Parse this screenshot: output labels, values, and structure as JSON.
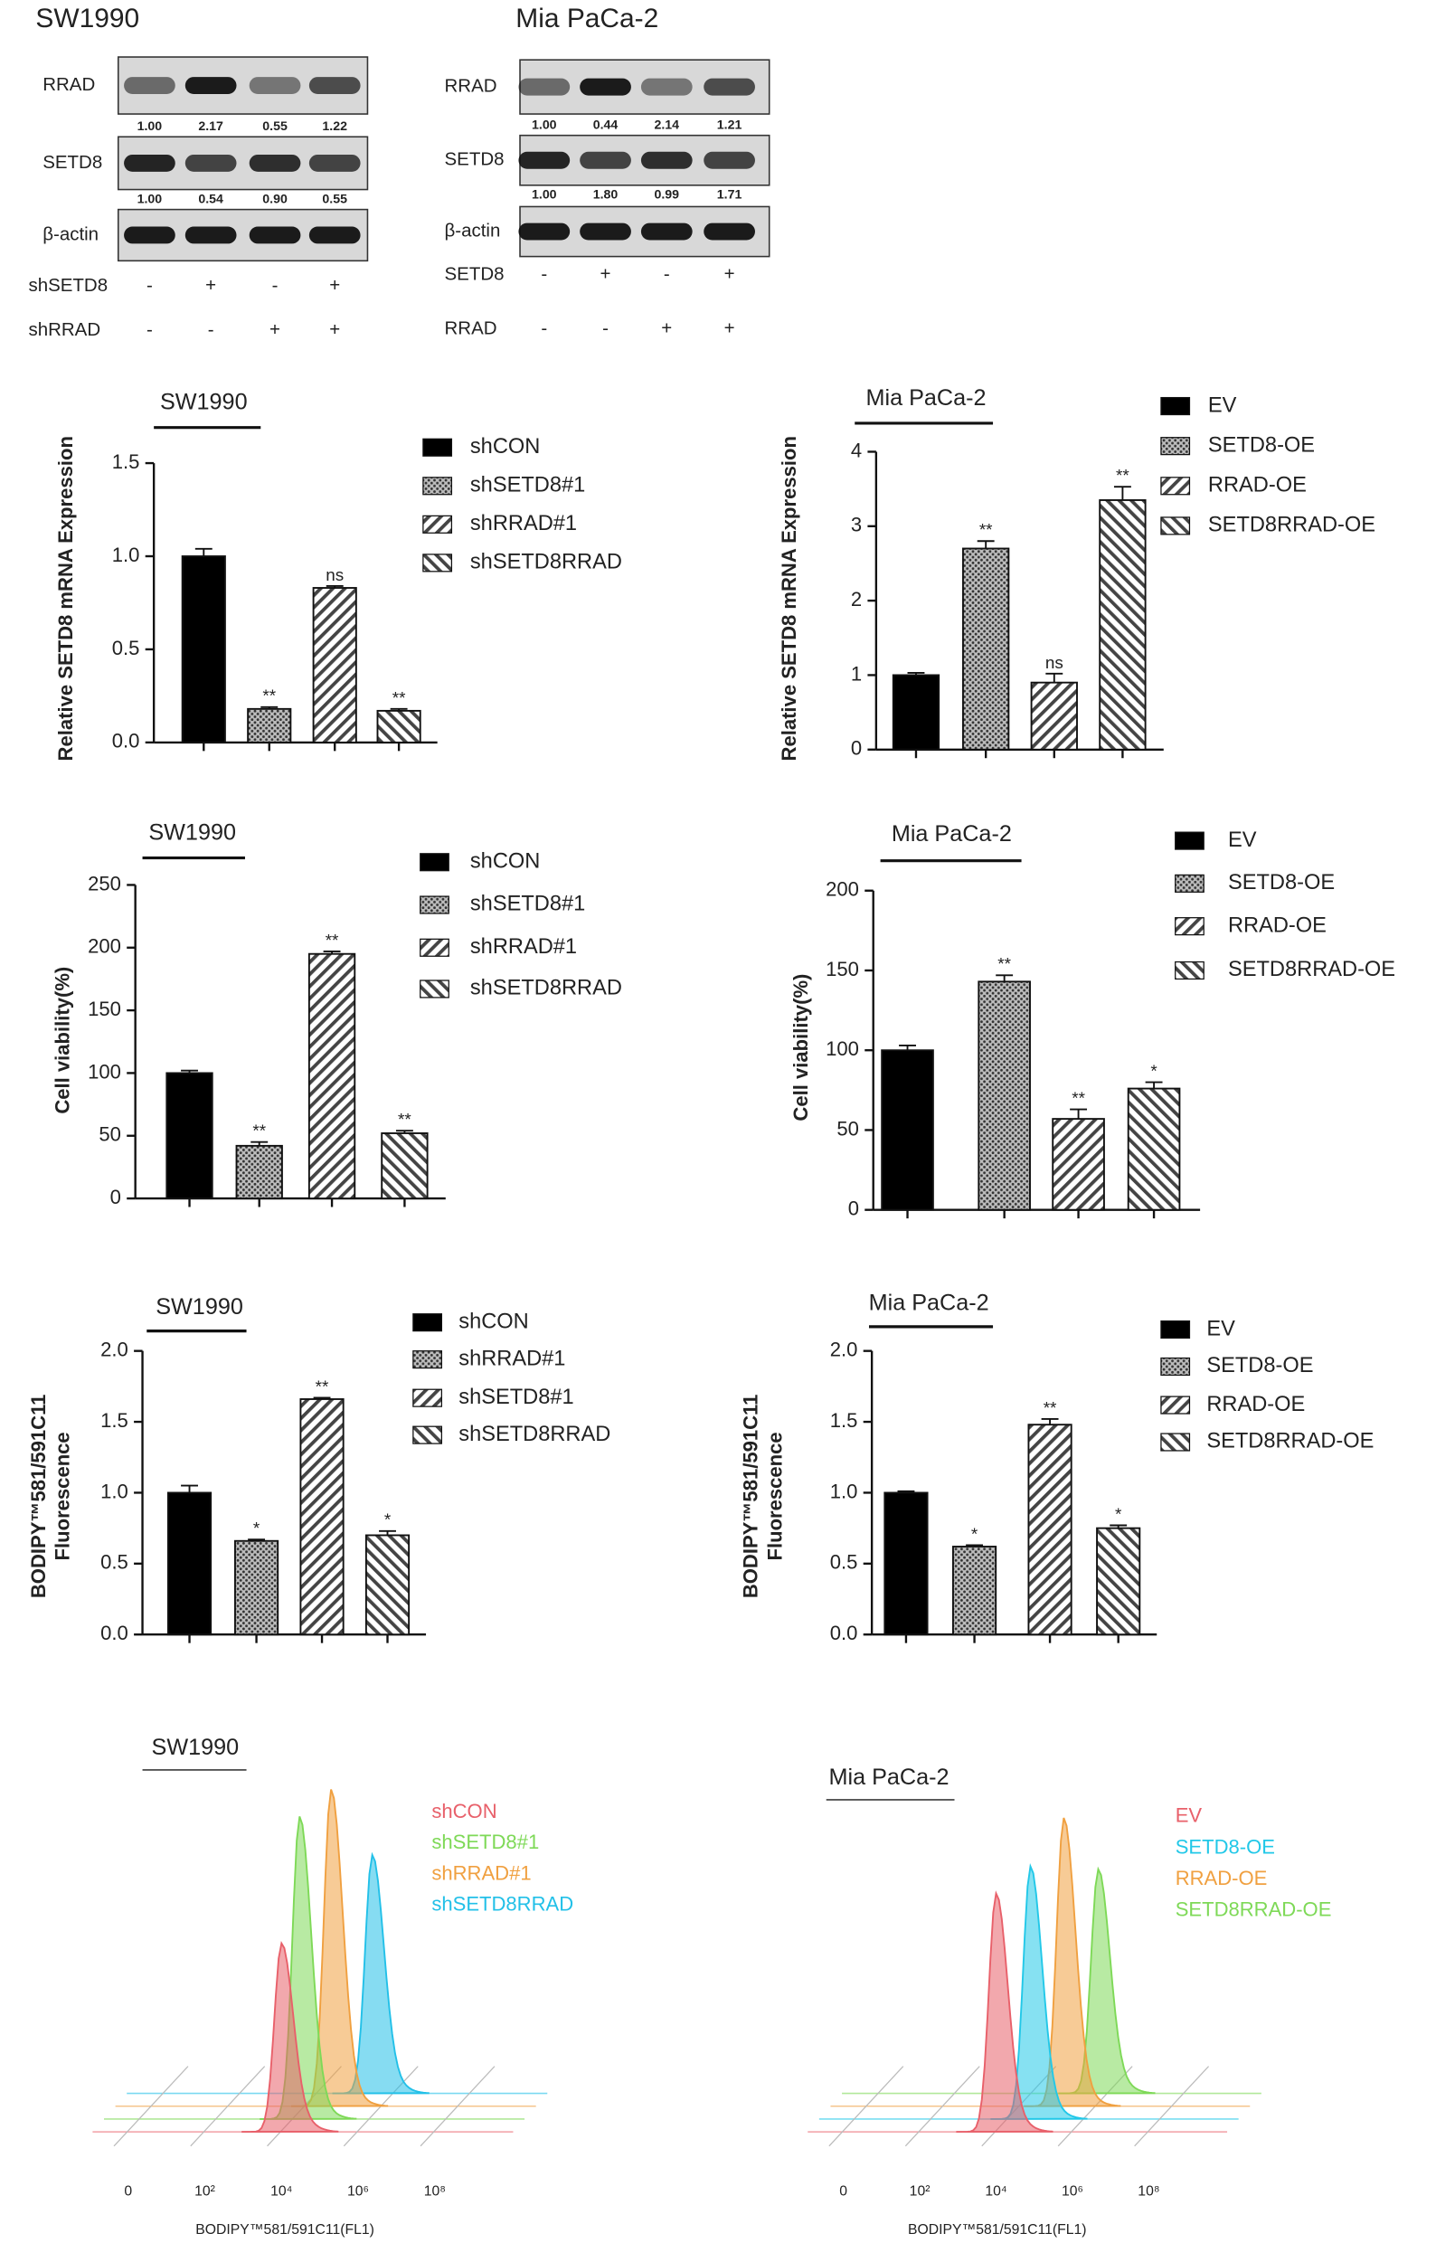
{
  "blots": [
    {
      "title": "SW1990",
      "rows": [
        {
          "label": "RRAD",
          "quant": [
            "1.00",
            "2.17",
            "0.55",
            "1.22"
          ]
        },
        {
          "label": "SETD8",
          "quant": [
            "1.00",
            "0.54",
            "0.90",
            "0.55"
          ]
        },
        {
          "label": "β-actin"
        }
      ],
      "conditions": [
        {
          "label": "shSETD8",
          "signs": [
            "-",
            "+",
            "-",
            "+"
          ]
        },
        {
          "label": "shRRAD",
          "signs": [
            "-",
            "-",
            "+",
            "+"
          ]
        }
      ]
    },
    {
      "title": "Mia PaCa-2",
      "rows": [
        {
          "label": "RRAD",
          "quant": [
            "1.00",
            "0.44",
            "2.14",
            "1.21"
          ]
        },
        {
          "label": "SETD8",
          "quant": [
            "1.00",
            "1.80",
            "0.99",
            "1.71"
          ]
        },
        {
          "label": "β-actin"
        }
      ],
      "conditions": [
        {
          "label": "SETD8",
          "signs": [
            "-",
            "+",
            "-",
            "+"
          ]
        },
        {
          "label": "RRAD",
          "signs": [
            "-",
            "-",
            "+",
            "+"
          ]
        }
      ]
    }
  ],
  "chart_data": [
    {
      "type": "bar",
      "title": "SW1990",
      "ylabel": "Relative SETD8 mRNA Expression",
      "ylim": [
        0,
        1.5
      ],
      "yticks": [
        {
          "value": 0,
          "label": "0.0"
        },
        0.5,
        {
          "value": 1,
          "label": "1.0"
        },
        1.5
      ],
      "series": [
        {
          "name": "shCON",
          "pattern": "solid",
          "color": "#000000",
          "values": [
            1.0
          ],
          "error": [
            0.04
          ]
        },
        {
          "name": "shSETD8#1",
          "pattern": "dots",
          "color": "#555555",
          "values": [
            0.18
          ],
          "error": [
            0.01
          ],
          "annotation": "**"
        },
        {
          "name": "shRRAD#1",
          "pattern": "hatch",
          "color": "#444444",
          "values": [
            0.83
          ],
          "error": [
            0.01
          ],
          "annotation": "ns"
        },
        {
          "name": "shSETD8RRAD",
          "pattern": "backhatch",
          "color": "#444444",
          "values": [
            0.17
          ],
          "error": [
            0.01
          ],
          "annotation": "**"
        }
      ]
    },
    {
      "type": "bar",
      "title": "Mia PaCa-2",
      "ylabel": "Relative SETD8 mRNA Expression",
      "ylim": [
        0,
        4
      ],
      "yticks": [
        0,
        1,
        2,
        3,
        4
      ],
      "series": [
        {
          "name": "EV",
          "pattern": "solid",
          "color": "#000000",
          "values": [
            1.0
          ],
          "error": [
            0.03
          ]
        },
        {
          "name": "SETD8-OE",
          "pattern": "dots",
          "color": "#555555",
          "values": [
            2.7
          ],
          "error": [
            0.1
          ],
          "annotation": "**"
        },
        {
          "name": "RRAD-OE",
          "pattern": "hatch",
          "color": "#444444",
          "values": [
            0.9
          ],
          "error": [
            0.12
          ],
          "annotation": "ns"
        },
        {
          "name": "SETD8RRAD-OE",
          "pattern": "backhatch",
          "color": "#444444",
          "values": [
            3.35
          ],
          "error": [
            0.18
          ],
          "annotation": "**"
        }
      ]
    },
    {
      "type": "bar",
      "title": "SW1990",
      "ylabel": "Cell viability(%)",
      "ylim": [
        0,
        250
      ],
      "yticks": [
        0,
        50,
        100,
        150,
        200,
        250
      ],
      "series": [
        {
          "name": "shCON",
          "pattern": "solid",
          "color": "#000000",
          "values": [
            100
          ],
          "error": [
            2
          ]
        },
        {
          "name": "shSETD8#1",
          "pattern": "dots",
          "color": "#555555",
          "values": [
            42
          ],
          "error": [
            3
          ],
          "annotation": "**"
        },
        {
          "name": "shRRAD#1",
          "pattern": "hatch",
          "color": "#444444",
          "values": [
            195
          ],
          "error": [
            2
          ],
          "annotation": "**"
        },
        {
          "name": "shSETD8RRAD",
          "pattern": "backhatch",
          "color": "#444444",
          "values": [
            52
          ],
          "error": [
            2
          ],
          "annotation": "**"
        }
      ]
    },
    {
      "type": "bar",
      "title": "Mia PaCa-2",
      "ylabel": "Cell viability(%)",
      "ylim": [
        0,
        200
      ],
      "yticks": [
        0,
        50,
        100,
        150,
        200
      ],
      "series": [
        {
          "name": "EV",
          "pattern": "solid",
          "color": "#000000",
          "values": [
            100
          ],
          "error": [
            3
          ]
        },
        {
          "name": "SETD8-OE",
          "pattern": "dots",
          "color": "#555555",
          "values": [
            143
          ],
          "error": [
            4
          ],
          "annotation": "**"
        },
        {
          "name": "RRAD-OE",
          "pattern": "hatch",
          "color": "#444444",
          "values": [
            57
          ],
          "error": [
            6
          ],
          "annotation": "**"
        },
        {
          "name": "SETD8RRAD-OE",
          "pattern": "backhatch",
          "color": "#444444",
          "values": [
            76
          ],
          "error": [
            4
          ],
          "annotation": "*"
        }
      ]
    },
    {
      "type": "bar",
      "title": "SW1990",
      "ylabel": [
        "BODIPY™581/591C11",
        "Fluorescence"
      ],
      "ylim": [
        0,
        2
      ],
      "yticks": [
        {
          "value": 0,
          "label": "0.0"
        },
        0.5,
        {
          "value": 1,
          "label": "1.0"
        },
        1.5,
        {
          "value": 2,
          "label": "2.0"
        }
      ],
      "series": [
        {
          "name": "shCON",
          "pattern": "solid",
          "color": "#000000",
          "values": [
            1.0
          ],
          "error": [
            0.05
          ]
        },
        {
          "name": "shRRAD#1",
          "pattern": "dots",
          "color": "#555555",
          "values": [
            0.66
          ],
          "error": [
            0.01
          ],
          "annotation": "*"
        },
        {
          "name": "shSETD8#1",
          "pattern": "hatch",
          "color": "#444444",
          "values": [
            1.66
          ],
          "error": [
            0.01
          ],
          "annotation": "**"
        },
        {
          "name": "shSETD8RRAD",
          "pattern": "backhatch",
          "color": "#444444",
          "values": [
            0.7
          ],
          "error": [
            0.03
          ],
          "annotation": "*"
        }
      ]
    },
    {
      "type": "bar",
      "title": "Mia PaCa-2",
      "ylabel": [
        "BODIPY™581/591C11",
        "Fluorescence"
      ],
      "ylim": [
        0,
        2
      ],
      "yticks": [
        {
          "value": 0,
          "label": "0.0"
        },
        0.5,
        {
          "value": 1,
          "label": "1.0"
        },
        1.5,
        {
          "value": 2,
          "label": "2.0"
        }
      ],
      "series": [
        {
          "name": "EV",
          "pattern": "solid",
          "color": "#000000",
          "values": [
            1.0
          ],
          "error": [
            0.01
          ]
        },
        {
          "name": "SETD8-OE",
          "pattern": "dots",
          "color": "#555555",
          "values": [
            0.62
          ],
          "error": [
            0.01
          ],
          "annotation": "*"
        },
        {
          "name": "RRAD-OE",
          "pattern": "hatch",
          "color": "#444444",
          "values": [
            1.48
          ],
          "error": [
            0.04
          ],
          "annotation": "**"
        },
        {
          "name": "SETD8RRAD-OE",
          "pattern": "backhatch",
          "color": "#444444",
          "values": [
            0.75
          ],
          "error": [
            0.02
          ],
          "annotation": "*"
        }
      ]
    },
    {
      "type": "density",
      "title": "SW1990",
      "xlabel": "BODIPY™581/591C11(FL1)",
      "xscale": "log",
      "xlim": [
        0,
        100000000
      ],
      "xticks": [
        0,
        {
          "value": 100,
          "label": "10²"
        },
        {
          "value": 10000,
          "label": "10⁴"
        },
        {
          "value": 1000000,
          "label": "10⁶"
        },
        {
          "value": 100000000,
          "label": "10⁸"
        }
      ],
      "series": [
        {
          "name": "shCON",
          "color": "#e8606a",
          "values": [
            10000
          ]
        },
        {
          "name": "shSETD8#1",
          "color": "#7ed957",
          "values": [
            15000
          ]
        },
        {
          "name": "shRRAD#1",
          "color": "#f0a040",
          "values": [
            50000
          ]
        },
        {
          "name": "shSETD8RRAD",
          "color": "#22c0e8",
          "values": [
            300000
          ]
        }
      ]
    },
    {
      "type": "density",
      "title": "Mia PaCa-2",
      "xlabel": "BODIPY™581/591C11(FL1)",
      "xscale": "log",
      "xlim": [
        0,
        100000000
      ],
      "xticks": [
        0,
        {
          "value": 100,
          "label": "10²"
        },
        {
          "value": 10000,
          "label": "10⁴"
        },
        {
          "value": 1000000,
          "label": "10⁶"
        },
        {
          "value": 100000000,
          "label": "10⁸"
        }
      ],
      "series": [
        {
          "name": "EV",
          "color": "#e8606a",
          "values": [
            10000
          ]
        },
        {
          "name": "SETD8-OE",
          "color": "#22c8e8",
          "values": [
            40000
          ]
        },
        {
          "name": "RRAD-OE",
          "color": "#f0a040",
          "values": [
            150000
          ]
        },
        {
          "name": "SETD8RRAD-OE",
          "color": "#7ed957",
          "values": [
            600000
          ]
        }
      ]
    }
  ]
}
